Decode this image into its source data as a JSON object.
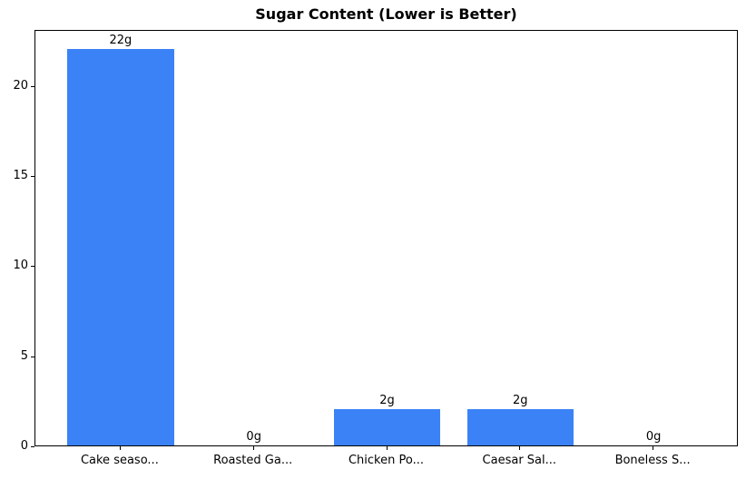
{
  "chart_data": {
    "type": "bar",
    "title": "Sugar Content (Lower is Better)",
    "categories": [
      "Cake seaso...",
      "Roasted Ga...",
      "Chicken Po...",
      "Caesar Sal...",
      "Boneless S..."
    ],
    "values": [
      22,
      0,
      2,
      2,
      0
    ],
    "bar_labels": [
      "22g",
      "0g",
      "2g",
      "2g",
      "0g"
    ],
    "xlabel": "",
    "ylabel": "",
    "yticks": [
      0,
      5,
      10,
      15,
      20
    ],
    "ylim": [
      0,
      23.1
    ],
    "xlim": [
      -0.64,
      4.64
    ],
    "bar_width": 0.8,
    "bar_color": "#3B82F6",
    "axis_color": "#000000",
    "background_color": "#ffffff",
    "grid": false,
    "legend": false
  }
}
